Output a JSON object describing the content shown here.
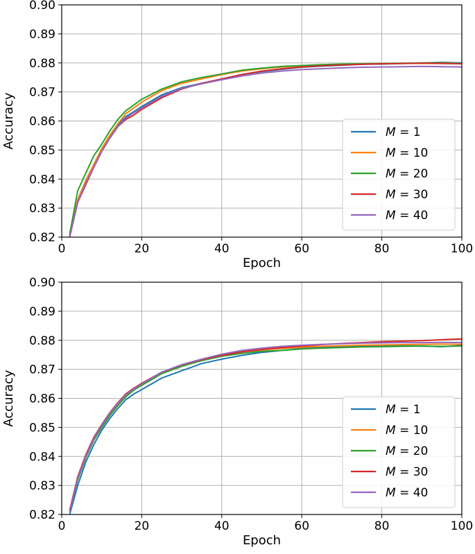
{
  "chart_data": [
    {
      "type": "line",
      "title": "",
      "xlabel": "Epoch",
      "ylabel": "Accuracy",
      "xlim": [
        0,
        100
      ],
      "ylim": [
        0.82,
        0.9
      ],
      "xticks": [
        "0",
        "20",
        "40",
        "60",
        "80",
        "100"
      ],
      "yticks": [
        "0.82",
        "0.83",
        "0.84",
        "0.85",
        "0.86",
        "0.87",
        "0.88",
        "0.89",
        "0.90"
      ],
      "grid": true,
      "legend": "lower right",
      "x": [
        2,
        4,
        6,
        8,
        10,
        12,
        14,
        16,
        18,
        20,
        25,
        30,
        35,
        40,
        45,
        50,
        55,
        60,
        65,
        70,
        75,
        80,
        85,
        90,
        95,
        100
      ],
      "series": [
        {
          "name": "M = 1",
          "color": "#1f77b4",
          "values": [
            0.8205,
            0.8325,
            0.839,
            0.8445,
            0.85,
            0.8545,
            0.8585,
            0.8615,
            0.8632,
            0.865,
            0.869,
            0.8715,
            0.873,
            0.8745,
            0.876,
            0.877,
            0.8778,
            0.8785,
            0.8789,
            0.8792,
            0.8795,
            0.8796,
            0.8798,
            0.88,
            0.8802,
            0.88
          ]
        },
        {
          "name": "M = 10",
          "color": "#ff7f0e",
          "values": [
            0.8215,
            0.833,
            0.8395,
            0.845,
            0.8505,
            0.855,
            0.859,
            0.8625,
            0.8645,
            0.8665,
            0.8705,
            0.873,
            0.8745,
            0.876,
            0.8772,
            0.878,
            0.8786,
            0.879,
            0.8793,
            0.8795,
            0.8797,
            0.8798,
            0.8799,
            0.88,
            0.88,
            0.8798
          ]
        },
        {
          "name": "M = 20",
          "color": "#2ca02c",
          "values": [
            0.821,
            0.836,
            0.842,
            0.848,
            0.852,
            0.8565,
            0.8605,
            0.8635,
            0.8655,
            0.8675,
            0.871,
            0.8735,
            0.875,
            0.8762,
            0.8775,
            0.8782,
            0.8788,
            0.8791,
            0.8794,
            0.8796,
            0.8797,
            0.8798,
            0.8799,
            0.88,
            0.8799,
            0.8798
          ]
        },
        {
          "name": "M = 30",
          "color": "#d62728",
          "values": [
            0.82,
            0.832,
            0.838,
            0.844,
            0.8495,
            0.854,
            0.858,
            0.8605,
            0.862,
            0.864,
            0.868,
            0.871,
            0.873,
            0.8745,
            0.876,
            0.8772,
            0.878,
            0.8786,
            0.879,
            0.8793,
            0.8795,
            0.8797,
            0.8798,
            0.8799,
            0.8798,
            0.8797
          ]
        },
        {
          "name": "M = 40",
          "color": "#9467bd",
          "values": [
            0.82,
            0.832,
            0.8385,
            0.844,
            0.8495,
            0.854,
            0.858,
            0.861,
            0.8628,
            0.8645,
            0.8685,
            0.8712,
            0.8728,
            0.8742,
            0.8755,
            0.8765,
            0.8772,
            0.8777,
            0.878,
            0.8783,
            0.8785,
            0.8786,
            0.8787,
            0.8788,
            0.8787,
            0.8786
          ]
        }
      ]
    },
    {
      "type": "line",
      "title": "",
      "xlabel": "Epoch",
      "ylabel": "Accuracy",
      "xlim": [
        0,
        100
      ],
      "ylim": [
        0.82,
        0.9
      ],
      "xticks": [
        "0",
        "20",
        "40",
        "60",
        "80",
        "100"
      ],
      "yticks": [
        "0.82",
        "0.83",
        "0.84",
        "0.85",
        "0.86",
        "0.87",
        "0.88",
        "0.89",
        "0.90"
      ],
      "grid": true,
      "legend": "lower right",
      "x": [
        2,
        4,
        6,
        8,
        10,
        12,
        14,
        16,
        18,
        20,
        25,
        30,
        35,
        40,
        45,
        50,
        55,
        60,
        65,
        70,
        75,
        80,
        85,
        90,
        95,
        100
      ],
      "series": [
        {
          "name": "M = 1",
          "color": "#1f77b4",
          "values": [
            0.82,
            0.83,
            0.838,
            0.844,
            0.849,
            0.853,
            0.8565,
            0.8595,
            0.8615,
            0.863,
            0.867,
            0.8695,
            0.872,
            0.8735,
            0.8748,
            0.8758,
            0.8765,
            0.8772,
            0.8775,
            0.8778,
            0.878,
            0.878,
            0.8781,
            0.878,
            0.8778,
            0.8782
          ]
        },
        {
          "name": "M = 10",
          "color": "#ff7f0e",
          "values": [
            0.8215,
            0.832,
            0.84,
            0.846,
            0.8505,
            0.8545,
            0.858,
            0.861,
            0.863,
            0.865,
            0.869,
            0.8715,
            0.8735,
            0.875,
            0.876,
            0.8767,
            0.8772,
            0.8776,
            0.8779,
            0.8781,
            0.8783,
            0.8784,
            0.8785,
            0.8786,
            0.8787,
            0.8786
          ]
        },
        {
          "name": "M = 20",
          "color": "#2ca02c",
          "values": [
            0.821,
            0.832,
            0.8395,
            0.8455,
            0.85,
            0.854,
            0.8575,
            0.8605,
            0.8628,
            0.8645,
            0.8685,
            0.871,
            0.873,
            0.8745,
            0.8755,
            0.8762,
            0.8765,
            0.877,
            0.8773,
            0.8775,
            0.8777,
            0.8778,
            0.8779,
            0.878,
            0.8779,
            0.878
          ]
        },
        {
          "name": "M = 30",
          "color": "#d62728",
          "values": [
            0.8215,
            0.833,
            0.8405,
            0.8465,
            0.851,
            0.855,
            0.8585,
            0.8615,
            0.8635,
            0.8652,
            0.869,
            0.8715,
            0.8733,
            0.8748,
            0.876,
            0.8768,
            0.8775,
            0.878,
            0.8785,
            0.8789,
            0.8792,
            0.8795,
            0.8797,
            0.8799,
            0.8802,
            0.8805
          ]
        },
        {
          "name": "M = 40",
          "color": "#9467bd",
          "values": [
            0.821,
            0.8325,
            0.84,
            0.846,
            0.8508,
            0.8548,
            0.8583,
            0.8612,
            0.8633,
            0.865,
            0.869,
            0.8716,
            0.8735,
            0.8752,
            0.8765,
            0.8773,
            0.8779,
            0.8783,
            0.8786,
            0.8788,
            0.879,
            0.8791,
            0.8792,
            0.8792,
            0.8793,
            0.8792
          ]
        }
      ]
    }
  ]
}
